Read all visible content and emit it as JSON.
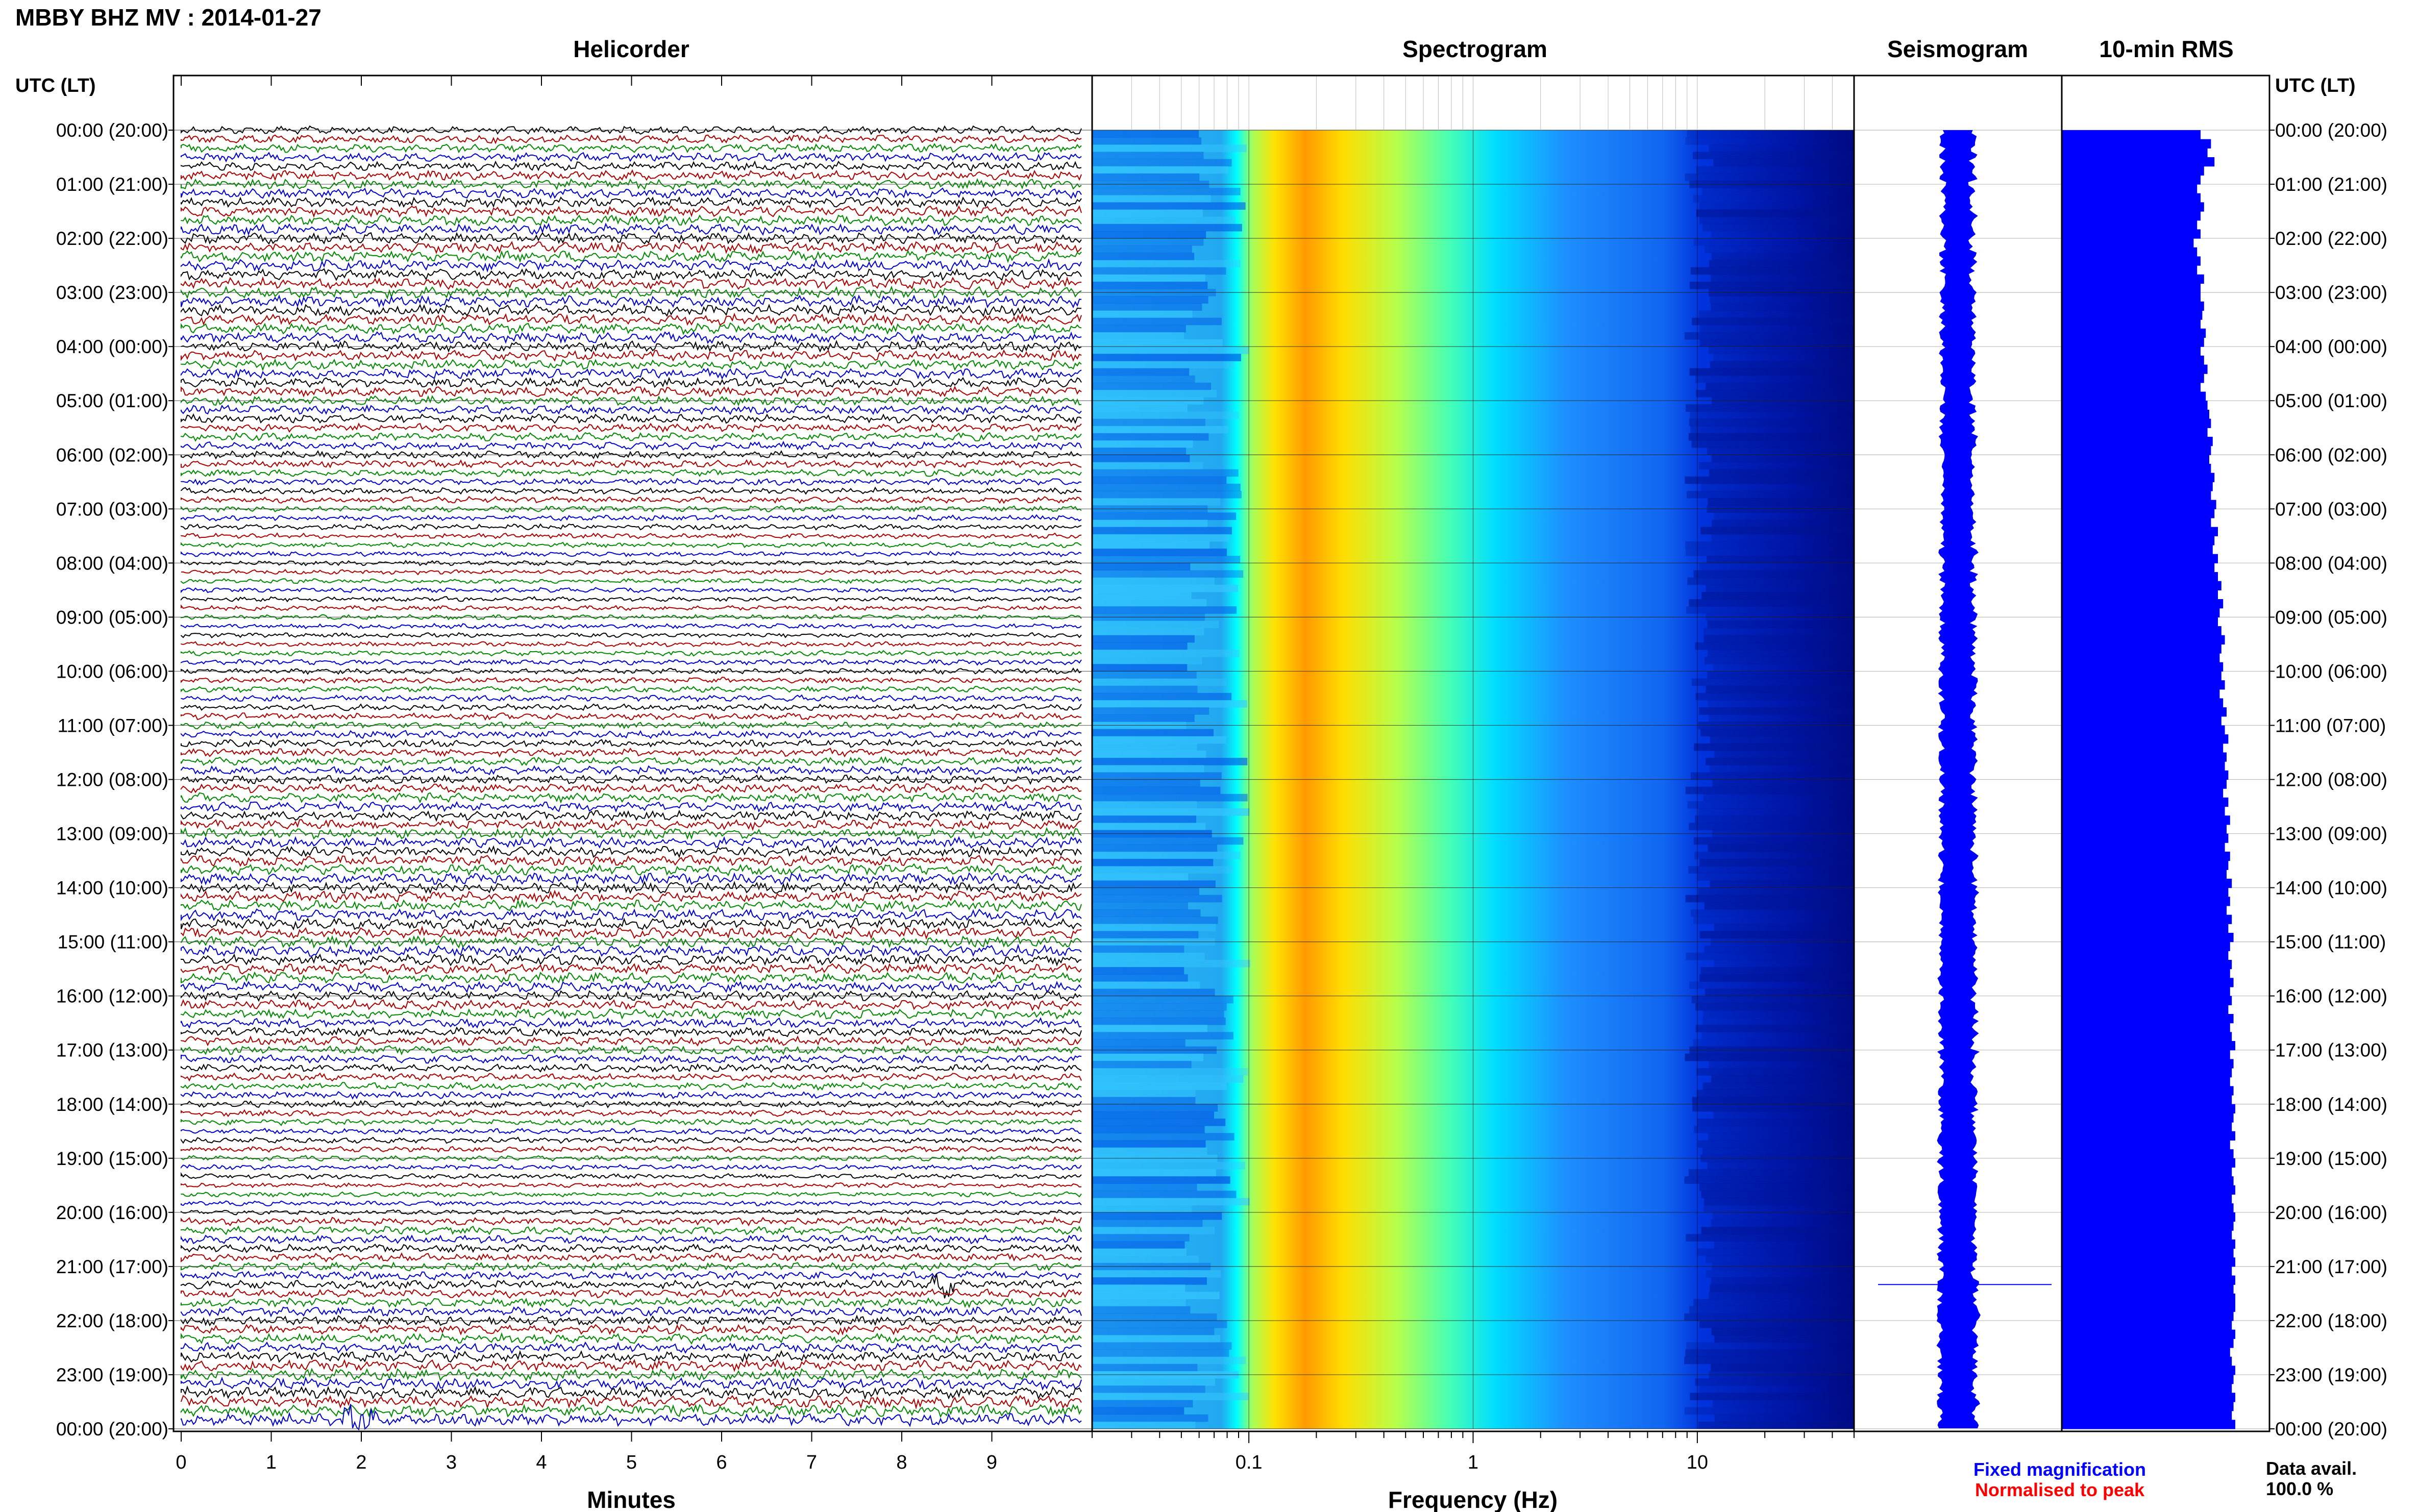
{
  "title": "MBBY BHZ MV : 2014-01-27",
  "time_axis_label": "UTC (LT)",
  "time_labels": [
    "00:00 (20:00)",
    "01:00 (21:00)",
    "02:00 (22:00)",
    "03:00 (23:00)",
    "04:00 (00:00)",
    "05:00 (01:00)",
    "06:00 (02:00)",
    "07:00 (03:00)",
    "08:00 (04:00)",
    "09:00 (05:00)",
    "10:00 (06:00)",
    "11:00 (07:00)",
    "12:00 (08:00)",
    "13:00 (09:00)",
    "14:00 (10:00)",
    "15:00 (11:00)",
    "16:00 (12:00)",
    "17:00 (13:00)",
    "18:00 (14:00)",
    "19:00 (15:00)",
    "20:00 (16:00)",
    "21:00 (17:00)",
    "22:00 (18:00)",
    "23:00 (19:00)",
    "00:00 (20:00)"
  ],
  "colors": {
    "trace_cycle": [
      "#000000",
      "#aa0000",
      "#008800",
      "#0000cc"
    ],
    "seismogram": "#0000ff",
    "rms_bar": "#0000ff",
    "fixed_magnification": "#0000ff",
    "normalised_to_peak": "#ff0000"
  },
  "chart_data": [
    {
      "type": "line",
      "title": "Helicorder",
      "xlabel": "Minutes",
      "x_ticks": [
        "0",
        "1",
        "2",
        "3",
        "4",
        "5",
        "6",
        "7",
        "8",
        "9"
      ],
      "xlim": [
        0,
        10
      ],
      "rows_per_hour": 6,
      "row_minutes": 10,
      "y_range_utc_hours": [
        0,
        24
      ],
      "events": [
        {
          "utc": "21:20",
          "minute": 8.5
        },
        {
          "utc": "23:50",
          "minute": 1.95
        }
      ]
    },
    {
      "type": "heatmap",
      "title": "Spectrogram",
      "xlabel": "Frequency (Hz)",
      "x_scale": "log",
      "x_ticks": [
        "0.1",
        "1",
        "10"
      ],
      "xlim": [
        0.02,
        50
      ],
      "peak_band_hz": [
        0.15,
        0.5
      ],
      "colormap": [
        "#00008b",
        "#0000ff",
        "#00bfff",
        "#00ffff",
        "#7fff7f",
        "#ffff00",
        "#ff8c00"
      ]
    },
    {
      "type": "line",
      "title": "Seismogram",
      "annotations": [
        "Fixed magnification",
        "Normalised to peak"
      ]
    },
    {
      "type": "bar",
      "title": "10-min RMS",
      "orientation": "horizontal",
      "values": [
        0.8,
        0.86,
        0.84,
        0.88,
        0.82,
        0.8,
        0.78,
        0.8,
        0.82,
        0.8,
        0.78,
        0.8,
        0.76,
        0.78,
        0.8,
        0.78,
        0.82,
        0.8,
        0.8,
        0.82,
        0.81,
        0.8,
        0.83,
        0.82,
        0.8,
        0.82,
        0.84,
        0.82,
        0.8,
        0.83,
        0.84,
        0.85,
        0.86,
        0.84,
        0.87,
        0.86,
        0.85,
        0.86,
        0.88,
        0.87,
        0.86,
        0.89,
        0.88,
        0.86,
        0.9,
        0.88,
        0.87,
        0.9,
        0.88,
        0.9,
        0.92,
        0.9,
        0.93,
        0.91,
        0.9,
        0.92,
        0.94,
        0.92,
        0.91,
        0.93,
        0.92,
        0.94,
        0.91,
        0.93,
        0.95,
        0.92,
        0.94,
        0.96,
        0.93,
        0.95,
        0.94,
        0.96,
        0.95,
        0.93,
        0.96,
        0.94,
        0.97,
        0.95,
        0.96,
        0.94,
        0.97,
        0.96,
        0.95,
        0.98,
        0.96,
        0.97,
        0.95,
        0.98,
        0.96,
        0.99,
        0.97,
        0.96,
        0.98,
        0.97,
        0.99,
        0.97,
        0.98,
        0.96,
        0.99,
        0.97,
        0.98,
        1.0,
        0.97,
        0.99,
        0.98,
        0.97,
        0.99,
        0.98,
        1.0,
        0.99,
        0.98,
        1.0,
        0.97,
        0.99,
        1.0,
        0.98,
        0.99,
        1.0,
        0.98,
        0.99,
        1.0,
        0.99,
        0.98,
        1.0,
        0.99,
        1.0,
        0.98,
        1.0,
        0.99,
        1.0,
        1.0,
        0.99,
        0.98,
        1.0,
        0.99,
        0.97,
        0.98,
        1.0,
        0.99,
        0.98,
        1.0,
        0.99,
        0.98,
        1.0
      ],
      "y_range_utc_hours": [
        0,
        24
      ]
    }
  ],
  "legend": {
    "fixed_magnification": "Fixed magnification",
    "normalised_to_peak": "Normalised to peak"
  },
  "data_avail": {
    "label": "Data avail.",
    "value": "100.0 %"
  }
}
